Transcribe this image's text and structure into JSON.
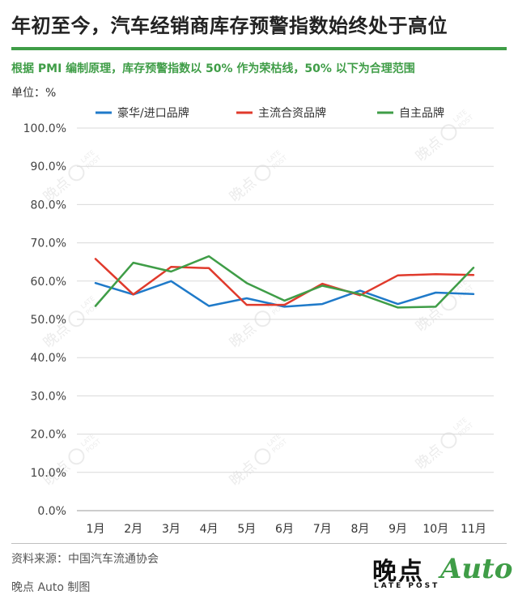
{
  "header": {
    "title": "年初至今，汽车经销商库存预警指数始终处于高位",
    "subtitle": "根据 PMI 编制原理，库存预警指数以 50% 作为荣枯线，50% 以下为合理范围",
    "unit_label": "单位：%"
  },
  "footer": {
    "source": "资料来源：中国汽车流通协会",
    "credit": "晚点 Auto 制图"
  },
  "logo": {
    "cn": "晚点",
    "en": "LATE POST",
    "auto": "Auto"
  },
  "watermark": {
    "cn": "晚点",
    "en_top": "LATE",
    "en_bottom": "POST"
  },
  "colors": {
    "accent": "#3f9d47",
    "series_1": "#1f7ac9",
    "series_2": "#e03a2c",
    "series_3": "#3f9d47",
    "grid": "#d9d9d9"
  },
  "chart_data": {
    "type": "line",
    "categories": [
      "1月",
      "2月",
      "3月",
      "4月",
      "5月",
      "6月",
      "7月",
      "8月",
      "9月",
      "10月",
      "11月"
    ],
    "series": [
      {
        "name": "豪华/进口品牌",
        "color": "#1f7ac9",
        "values": [
          59.5,
          56.5,
          60.0,
          53.5,
          55.5,
          53.3,
          54.0,
          57.5,
          54.0,
          57.0,
          56.6
        ]
      },
      {
        "name": "主流合资品牌",
        "color": "#e03a2c",
        "values": [
          65.8,
          56.5,
          63.7,
          63.4,
          53.8,
          53.8,
          59.3,
          56.3,
          61.5,
          61.8,
          61.6
        ]
      },
      {
        "name": "自主品牌",
        "color": "#3f9d47",
        "values": [
          53.5,
          64.8,
          62.5,
          66.5,
          59.5,
          54.9,
          58.8,
          56.6,
          53.1,
          53.3,
          63.5
        ]
      }
    ],
    "y_ticks": [
      "0.0%",
      "10.0%",
      "20.0%",
      "30.0%",
      "40.0%",
      "50.0%",
      "60.0%",
      "70.0%",
      "80.0%",
      "90.0%",
      "100.0%"
    ],
    "ylim": [
      0,
      100
    ],
    "grid": true,
    "legend_position": "top"
  }
}
